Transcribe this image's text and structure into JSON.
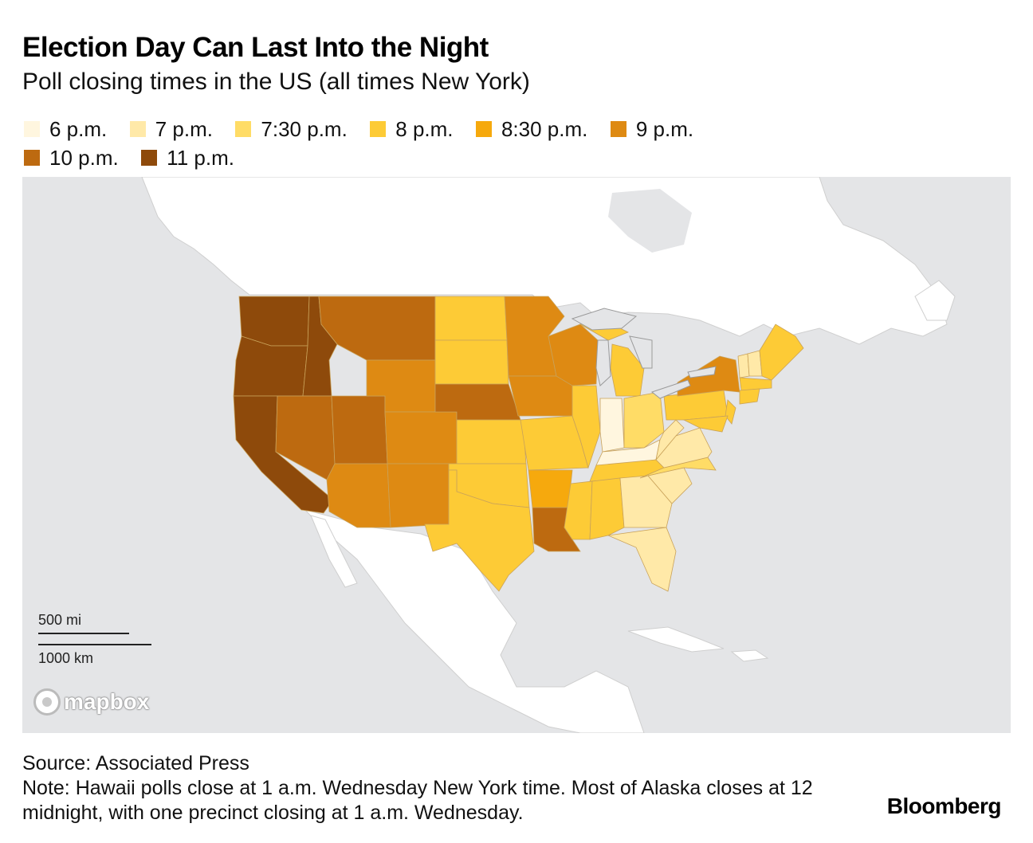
{
  "title": "Election Day Can Last Into the Night",
  "subtitle": "Poll closing times in the US (all times New York)",
  "legend": [
    {
      "label": "6 p.m.",
      "color": "#fff6df"
    },
    {
      "label": "7 p.m.",
      "color": "#ffe9a8"
    },
    {
      "label": "7:30 p.m.",
      "color": "#ffdc66"
    },
    {
      "label": "8 p.m.",
      "color": "#fdcb36"
    },
    {
      "label": "8:30 p.m.",
      "color": "#f6a90d"
    },
    {
      "label": "9 p.m.",
      "color": "#de8a13"
    },
    {
      "label": "10 p.m.",
      "color": "#bd6a10"
    },
    {
      "label": "11 p.m.",
      "color": "#8e4a0b"
    }
  ],
  "map": {
    "scale_mi": "500 mi",
    "scale_km": "1000 km",
    "attribution": "mapbox"
  },
  "source": "Source: Associated Press",
  "note": "Note: Hawaii polls close at 1 a.m. Wednesday New York time. Most of Alaska closes at 12 midnight, with one precinct closing at 1 a.m. Wednesday.",
  "brand": "Bloomberg"
}
